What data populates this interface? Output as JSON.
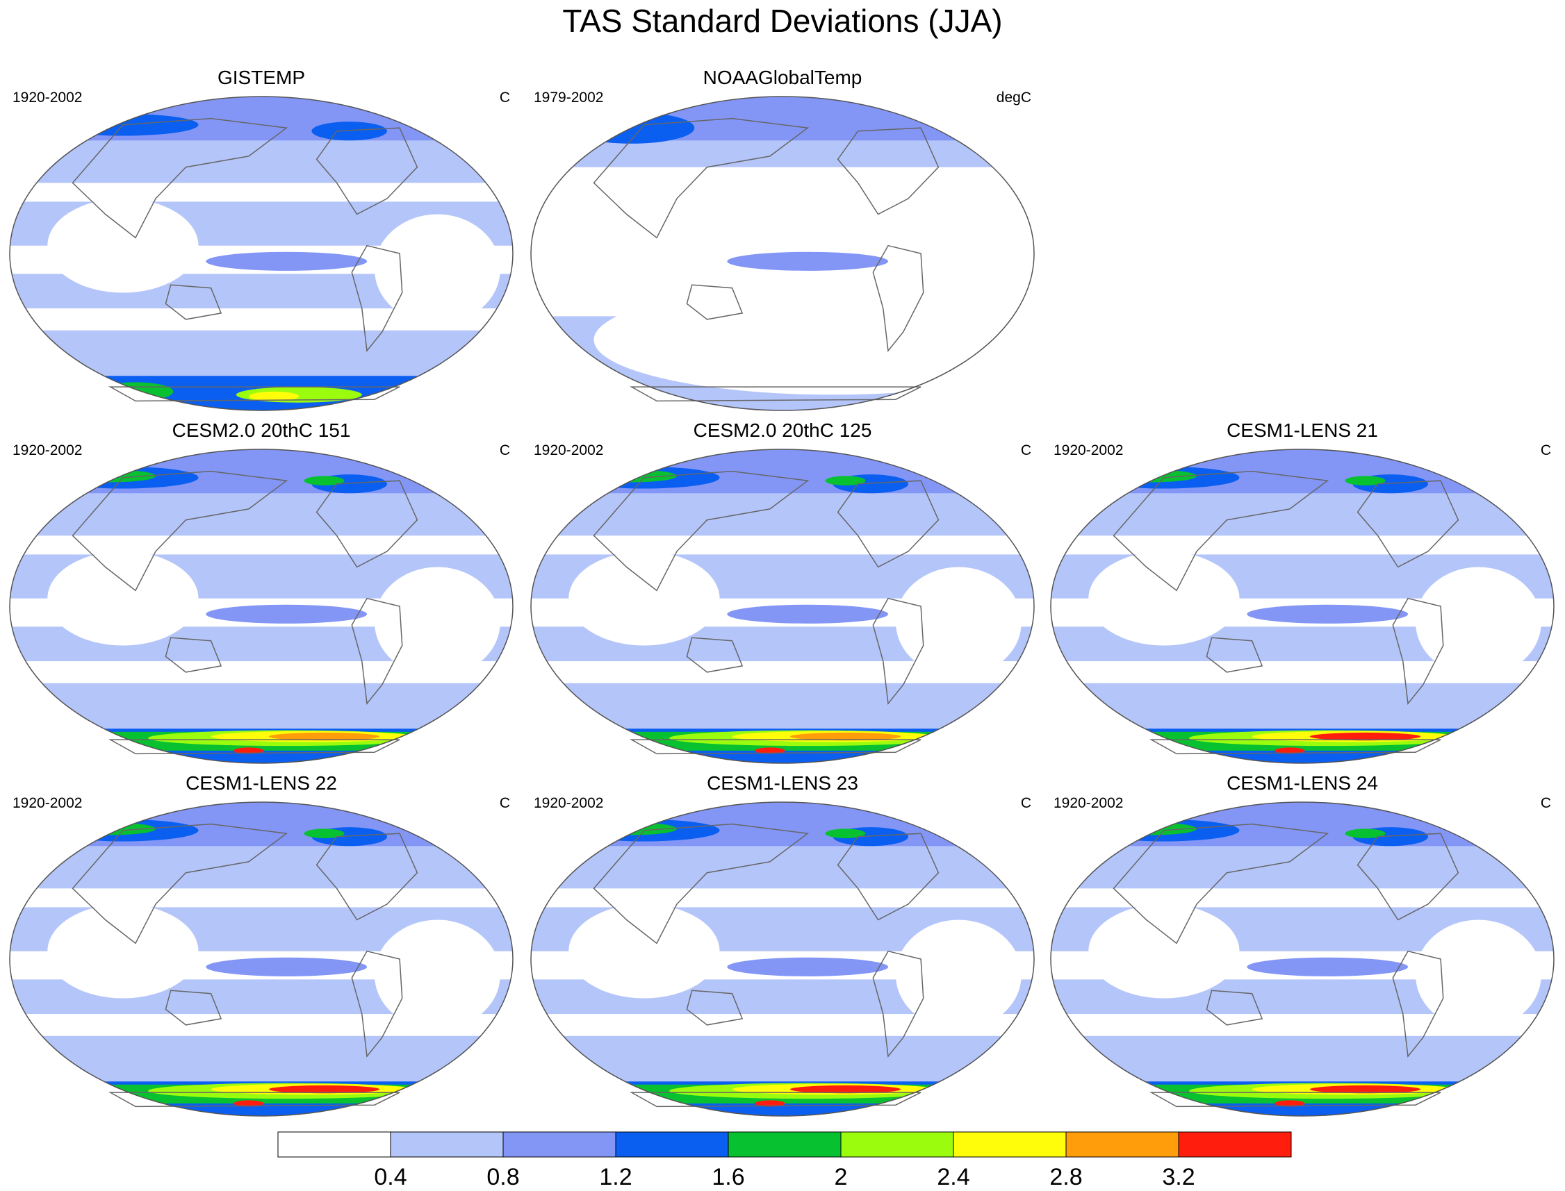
{
  "figure": {
    "title": "TAS Standard Deviations (JJA)"
  },
  "panels": [
    {
      "title": "GISTEMP",
      "period": "1920-2002",
      "units": "C",
      "style": "obs_gistemp"
    },
    {
      "title": "NOAAGlobalTemp",
      "period": "1979-2002",
      "units": "degC",
      "style": "obs_noaa"
    },
    {
      "title": "CESM2.0 20thC 151",
      "period": "1920-2002",
      "units": "C",
      "style": "model"
    },
    {
      "title": "CESM2.0 20thC 125",
      "period": "1920-2002",
      "units": "C",
      "style": "model"
    },
    {
      "title": "CESM1-LENS 21",
      "period": "1920-2002",
      "units": "C",
      "style": "model_strong"
    },
    {
      "title": "CESM1-LENS 22",
      "period": "1920-2002",
      "units": "C",
      "style": "model_strong"
    },
    {
      "title": "CESM1-LENS 23",
      "period": "1920-2002",
      "units": "C",
      "style": "model_strong"
    },
    {
      "title": "CESM1-LENS 24",
      "period": "1920-2002",
      "units": "C",
      "style": "model_strong"
    }
  ],
  "colorbar": {
    "labels": [
      "0.4",
      "0.8",
      "1.2",
      "1.6",
      "2",
      "2.4",
      "2.8",
      "3.2"
    ],
    "colors": [
      "#ffffff",
      "#b4c5fa",
      "#8396f6",
      "#0a5ff0",
      "#08c130",
      "#9bfc0e",
      "#fffd0a",
      "#ff9d0a",
      "#ff1e0e"
    ]
  }
}
